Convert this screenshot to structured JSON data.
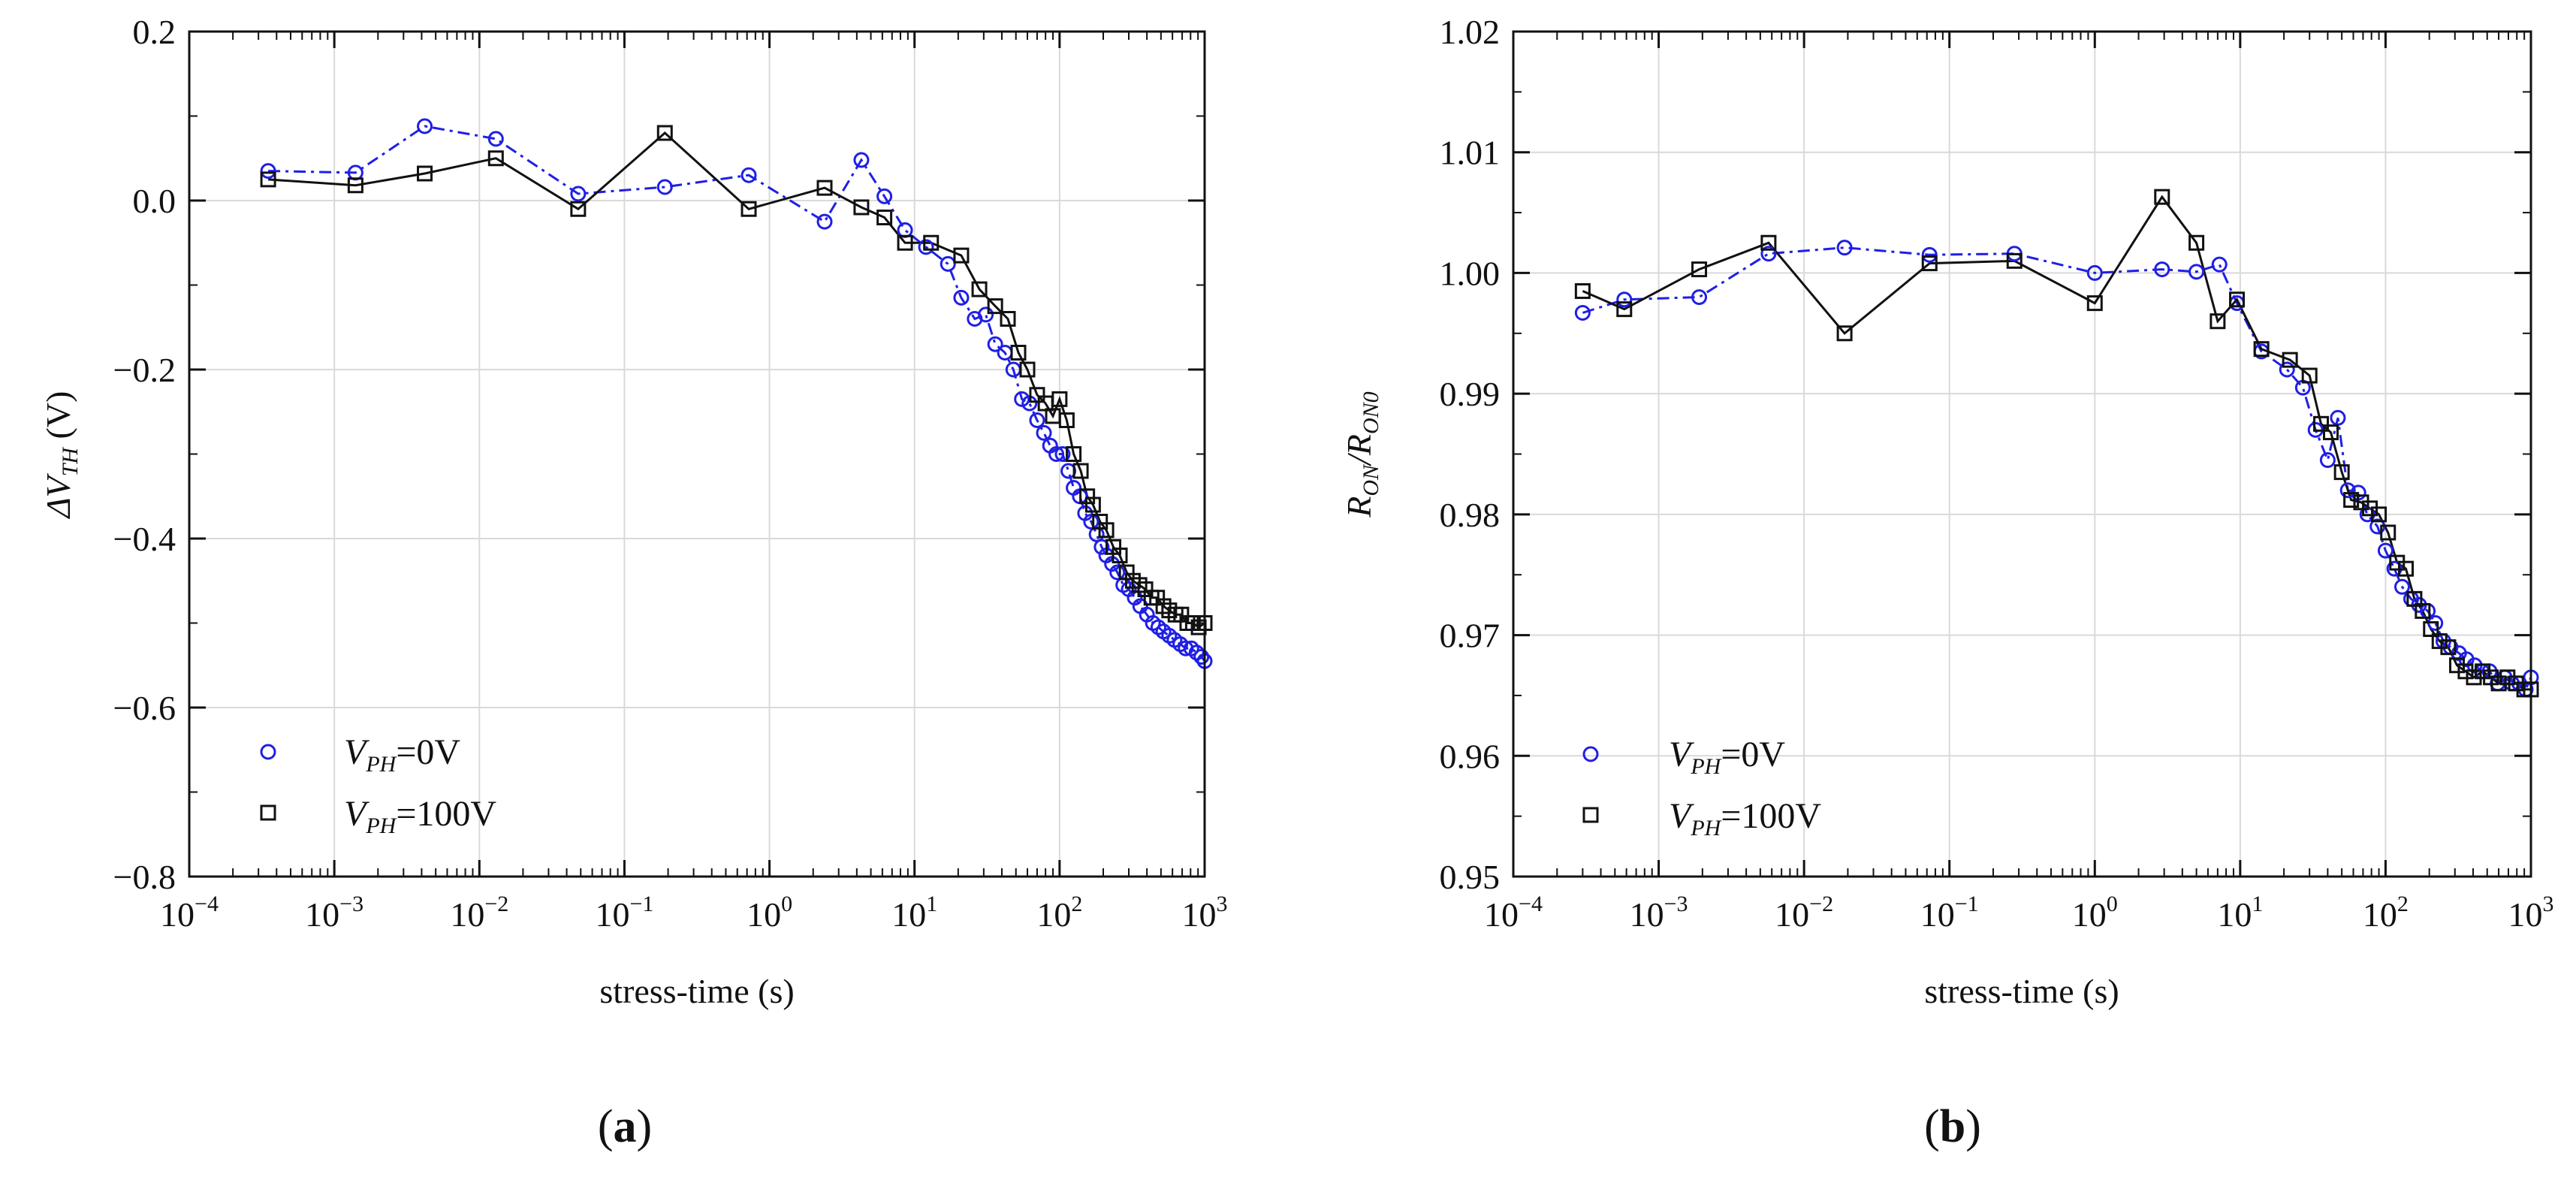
{
  "chart_data": [
    {
      "type": "scatter",
      "panel_label": "a",
      "xlabel": "stress-time (s)",
      "ylabel": {
        "prefix": "ΔV",
        "sub": "TH",
        "suffix": " (V)"
      },
      "xscale": "log",
      "xlim": [
        0.0001,
        1000
      ],
      "ylim": [
        -0.8,
        0.2
      ],
      "x_ticks": [
        {
          "base": "10",
          "exp": "−4"
        },
        {
          "base": "10",
          "exp": "−3"
        },
        {
          "base": "10",
          "exp": "−2"
        },
        {
          "base": "10",
          "exp": "−1"
        },
        {
          "base": "10",
          "exp": "0"
        },
        {
          "base": "10",
          "exp": "1"
        },
        {
          "base": "10",
          "exp": "2"
        },
        {
          "base": "10",
          "exp": "3"
        }
      ],
      "y_ticks": [
        {
          "value": -0.8,
          "label": "−0.8"
        },
        {
          "value": -0.6,
          "label": "−0.6"
        },
        {
          "value": -0.4,
          "label": "−0.4"
        },
        {
          "value": -0.2,
          "label": "−0.2"
        },
        {
          "value": 0.0,
          "label": "0.0"
        },
        {
          "value": 0.2,
          "label": "0.2"
        }
      ],
      "grid": true,
      "legend_position": "bottom-left",
      "series": [
        {
          "name": "V_PH=0V",
          "legend": {
            "prefix": "V",
            "sub": "PH",
            "suffix": "=0V"
          },
          "color": "#1f1fe6",
          "marker": "circle",
          "line": "dash-dot",
          "x": [
            0.00035,
            0.0014,
            0.0042,
            0.013,
            0.048,
            0.19,
            0.72,
            2.4,
            4.3,
            6.2,
            8.6,
            12,
            17,
            21,
            26,
            31,
            36,
            42,
            48,
            55,
            62,
            70,
            78,
            86,
            95,
            105,
            115,
            125,
            138,
            150,
            165,
            180,
            195,
            210,
            230,
            250,
            275,
            300,
            330,
            360,
            400,
            440,
            480,
            520,
            570,
            620,
            680,
            740,
            810,
            880,
            950,
            1000
          ],
          "y": [
            0.035,
            0.033,
            0.088,
            0.073,
            0.008,
            0.016,
            0.03,
            -0.025,
            0.048,
            0.005,
            -0.035,
            -0.055,
            -0.075,
            -0.115,
            -0.14,
            -0.135,
            -0.17,
            -0.18,
            -0.2,
            -0.235,
            -0.24,
            -0.26,
            -0.275,
            -0.29,
            -0.3,
            -0.3,
            -0.32,
            -0.34,
            -0.35,
            -0.37,
            -0.38,
            -0.395,
            -0.41,
            -0.42,
            -0.43,
            -0.44,
            -0.455,
            -0.46,
            -0.47,
            -0.48,
            -0.49,
            -0.5,
            -0.505,
            -0.51,
            -0.515,
            -0.52,
            -0.525,
            -0.53,
            -0.53,
            -0.535,
            -0.54,
            -0.545
          ]
        },
        {
          "name": "V_PH=100V",
          "legend": {
            "prefix": "V",
            "sub": "PH",
            "suffix": "=100V"
          },
          "color": "#111111",
          "marker": "square",
          "line": "solid",
          "x": [
            0.00035,
            0.0014,
            0.0042,
            0.013,
            0.048,
            0.19,
            0.72,
            2.4,
            4.3,
            6.2,
            8.6,
            13,
            21,
            28,
            36,
            44,
            52,
            60,
            70,
            80,
            90,
            100,
            112,
            125,
            140,
            155,
            170,
            190,
            210,
            235,
            260,
            290,
            320,
            355,
            390,
            430,
            470,
            520,
            570,
            630,
            690,
            760,
            830,
            910,
            1000
          ],
          "y": [
            0.025,
            0.018,
            0.032,
            0.05,
            -0.01,
            0.08,
            -0.01,
            0.015,
            -0.008,
            -0.02,
            -0.05,
            -0.05,
            -0.065,
            -0.105,
            -0.125,
            -0.14,
            -0.18,
            -0.2,
            -0.23,
            -0.24,
            -0.255,
            -0.235,
            -0.26,
            -0.3,
            -0.32,
            -0.35,
            -0.36,
            -0.38,
            -0.39,
            -0.41,
            -0.42,
            -0.44,
            -0.45,
            -0.455,
            -0.46,
            -0.47,
            -0.47,
            -0.48,
            -0.485,
            -0.49,
            -0.49,
            -0.5,
            -0.5,
            -0.505,
            -0.5
          ]
        }
      ]
    },
    {
      "type": "scatter",
      "panel_label": "b",
      "xlabel": "stress-time (s)",
      "ylabel": {
        "prefix": "R",
        "sub": "ON",
        "mid": "/R",
        "sub2": "ON0"
      },
      "xscale": "log",
      "xlim": [
        0.0001,
        1000
      ],
      "ylim": [
        0.95,
        1.02
      ],
      "x_ticks": [
        {
          "base": "10",
          "exp": "−4"
        },
        {
          "base": "10",
          "exp": "−3"
        },
        {
          "base": "10",
          "exp": "−2"
        },
        {
          "base": "10",
          "exp": "−1"
        },
        {
          "base": "10",
          "exp": "0"
        },
        {
          "base": "10",
          "exp": "1"
        },
        {
          "base": "10",
          "exp": "2"
        },
        {
          "base": "10",
          "exp": "3"
        }
      ],
      "y_ticks": [
        {
          "value": 0.95,
          "label": "0.95"
        },
        {
          "value": 0.96,
          "label": "0.96"
        },
        {
          "value": 0.97,
          "label": "0.97"
        },
        {
          "value": 0.98,
          "label": "0.98"
        },
        {
          "value": 0.99,
          "label": "0.99"
        },
        {
          "value": 1.0,
          "label": "1.00"
        },
        {
          "value": 1.01,
          "label": "1.01"
        },
        {
          "value": 1.02,
          "label": "1.02"
        }
      ],
      "grid": true,
      "legend_position": "bottom-left",
      "series": [
        {
          "name": "V_PH=0V",
          "legend": {
            "prefix": "V",
            "sub": "PH",
            "suffix": "=0V"
          },
          "color": "#1f1fe6",
          "marker": "circle",
          "line": "dash-dot",
          "x": [
            0.0003,
            0.00058,
            0.0019,
            0.0057,
            0.019,
            0.073,
            0.28,
            1.0,
            2.9,
            5.0,
            7.2,
            9.5,
            14,
            21,
            27,
            33,
            40,
            47,
            55,
            65,
            75,
            88,
            100,
            115,
            130,
            150,
            170,
            195,
            220,
            250,
            280,
            320,
            360,
            410,
            460,
            520,
            590,
            660,
            740,
            830,
            920,
            1000
          ],
          "y": [
            0.9967,
            0.9978,
            0.998,
            1.0016,
            1.0021,
            1.0015,
            1.0016,
            1.0,
            1.0003,
            1.0001,
            1.0007,
            0.9975,
            0.9935,
            0.992,
            0.9905,
            0.987,
            0.9845,
            0.988,
            0.982,
            0.9818,
            0.98,
            0.979,
            0.977,
            0.9755,
            0.974,
            0.973,
            0.9725,
            0.972,
            0.971,
            0.9695,
            0.969,
            0.9685,
            0.968,
            0.9675,
            0.967,
            0.967,
            0.966,
            0.9665,
            0.966,
            0.966,
            0.9655,
            0.9665
          ]
        },
        {
          "name": "V_PH=100V",
          "legend": {
            "prefix": "V",
            "sub": "PH",
            "suffix": "=100V"
          },
          "color": "#111111",
          "marker": "square",
          "line": "solid",
          "x": [
            0.0003,
            0.00058,
            0.0019,
            0.0057,
            0.019,
            0.073,
            0.28,
            1.0,
            2.9,
            5.0,
            7.0,
            9.5,
            14,
            22,
            30,
            36,
            42,
            50,
            58,
            68,
            78,
            90,
            104,
            120,
            138,
            158,
            180,
            205,
            235,
            270,
            310,
            355,
            405,
            465,
            530,
            600,
            690,
            790,
            900,
            1000
          ],
          "y": [
            0.9985,
            0.997,
            1.0003,
            1.0025,
            0.995,
            1.0008,
            1.001,
            0.9975,
            1.0063,
            1.0025,
            0.996,
            0.9978,
            0.9937,
            0.9928,
            0.9915,
            0.9875,
            0.9868,
            0.9835,
            0.9812,
            0.981,
            0.9805,
            0.98,
            0.9785,
            0.976,
            0.9755,
            0.973,
            0.972,
            0.9705,
            0.9695,
            0.969,
            0.9675,
            0.967,
            0.9665,
            0.967,
            0.9665,
            0.966,
            0.9665,
            0.966,
            0.9655,
            0.9655
          ]
        }
      ]
    }
  ]
}
